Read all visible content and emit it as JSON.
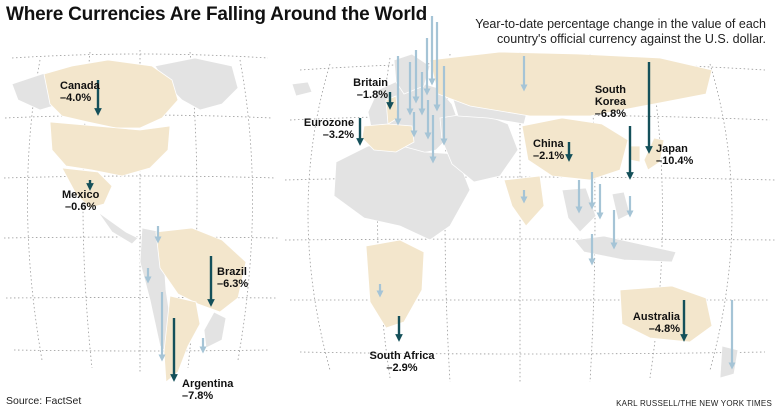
{
  "title": "Where Currencies Are Falling Around the World",
  "subtitle": "Year-to-date percentage change in the value of each country's official currency against the U.S. dollar.",
  "source": "Source: FactSet",
  "credit": "KARL RUSSELL/THE NEW YORK TIMES",
  "colors": {
    "background": "#ffffff",
    "land_neutral": "#e3e3e3",
    "land_highlight": "#f3e6cc",
    "labeled_arrow": "#14505a",
    "other_arrow": "#a5c4d6",
    "graticule": "#9a9a9a"
  },
  "labeled_currencies": [
    {
      "country": "Canada",
      "change": "–4.0%",
      "value": -4.0
    },
    {
      "country": "Mexico",
      "change": "–0.6%",
      "value": -0.6
    },
    {
      "country": "Brazil",
      "change": "–6.3%",
      "value": -6.3
    },
    {
      "country": "Argentina",
      "change": "–7.8%",
      "value": -7.8
    },
    {
      "country": "Britain",
      "change": "–1.8%",
      "value": -1.8
    },
    {
      "country": "Eurozone",
      "change": "–3.2%",
      "value": -3.2
    },
    {
      "country": "South Africa",
      "change": "–2.9%",
      "value": -2.9
    },
    {
      "country": "China",
      "change": "–2.1%",
      "value": -2.1
    },
    {
      "country": "South Korea",
      "change": "–6.8%",
      "value": -6.8
    },
    {
      "country": "Japan",
      "change": "–10.4%",
      "value": -10.4
    },
    {
      "country": "Australia",
      "change": "–4.8%",
      "value": -4.8
    }
  ]
}
